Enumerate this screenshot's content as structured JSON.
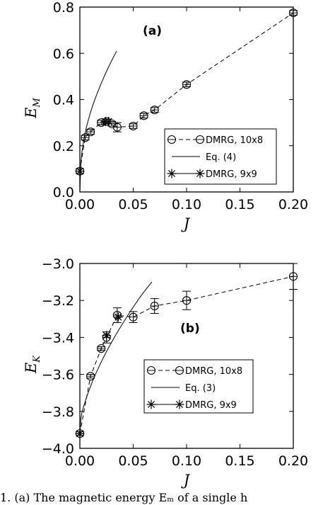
{
  "chart_data": [
    {
      "type": "scatter",
      "panel_label": "(a)",
      "xlabel": "J",
      "ylabel": "E_M",
      "xlim": [
        0.0,
        0.2
      ],
      "ylim": [
        0.0,
        0.8
      ],
      "xticks": [
        "0.00",
        "0.05",
        "0.10",
        "0.15",
        "0.20"
      ],
      "yticks": [
        "0.0",
        "0.2",
        "0.4",
        "0.6",
        "0.8"
      ],
      "legend_position": "lower-right",
      "series": [
        {
          "name": "DMRG, 10x8",
          "style": "open-circle-dashed",
          "x": [
            0.0,
            0.005,
            0.01,
            0.02,
            0.025,
            0.03,
            0.035,
            0.05,
            0.06,
            0.07,
            0.1,
            0.2
          ],
          "y": [
            0.09,
            0.235,
            0.26,
            0.3,
            0.305,
            0.295,
            0.28,
            0.285,
            0.33,
            0.355,
            0.465,
            0.775
          ],
          "err": [
            0.01,
            0.01,
            0.01,
            0.01,
            0.01,
            0.01,
            0.02,
            0.01,
            0.01,
            0.01,
            0.01,
            0.01
          ]
        },
        {
          "name": "Eq. (4)",
          "style": "solid-line",
          "x": [
            0.0,
            0.001,
            0.002,
            0.004,
            0.006,
            0.008,
            0.01,
            0.012,
            0.014,
            0.016,
            0.018,
            0.02,
            0.022,
            0.024,
            0.026,
            0.028,
            0.03,
            0.032,
            0.0345
          ],
          "y": [
            0.0,
            0.129,
            0.175,
            0.234,
            0.278,
            0.313,
            0.345,
            0.373,
            0.399,
            0.424,
            0.447,
            0.47,
            0.491,
            0.512,
            0.532,
            0.551,
            0.57,
            0.588,
            0.61
          ]
        },
        {
          "name": "DMRG, 9x9",
          "style": "star-solid",
          "x": [
            0.0,
            0.024,
            0.027
          ],
          "y": [
            0.09,
            0.305,
            0.305
          ]
        }
      ]
    },
    {
      "type": "scatter",
      "panel_label": "(b)",
      "xlabel": "J",
      "ylabel": "E_K",
      "xlim": [
        0.0,
        0.2
      ],
      "ylim": [
        -4.0,
        -3.0
      ],
      "xticks": [
        "0.00",
        "0.05",
        "0.10",
        "0.15",
        "0.20"
      ],
      "yticks": [
        "−4.0",
        "−3.8",
        "−3.6",
        "−3.4",
        "−3.2",
        "−3.0"
      ],
      "legend_position": "lower-left",
      "series": [
        {
          "name": "DMRG, 10x8",
          "style": "open-circle-dashed",
          "x": [
            0.0,
            0.01,
            0.02,
            0.025,
            0.035,
            0.05,
            0.07,
            0.1,
            0.2
          ],
          "y": [
            -3.92,
            -3.61,
            -3.46,
            -3.4,
            -3.28,
            -3.29,
            -3.23,
            -3.2,
            -3.07
          ],
          "err": [
            0.01,
            0.01,
            0.01,
            0.03,
            0.04,
            0.03,
            0.04,
            0.05,
            0.07
          ]
        },
        {
          "name": "Eq. (3)",
          "style": "solid-line",
          "x": [
            0.0,
            0.001,
            0.002,
            0.004,
            0.006,
            0.008,
            0.01,
            0.012,
            0.014,
            0.016,
            0.018,
            0.02,
            0.024,
            0.028,
            0.032,
            0.036,
            0.04,
            0.045,
            0.05,
            0.055,
            0.06,
            0.0675
          ],
          "y": [
            -3.92,
            -3.84,
            -3.806,
            -3.766,
            -3.728,
            -3.695,
            -3.665,
            -3.636,
            -3.608,
            -3.582,
            -3.557,
            -3.533,
            -3.487,
            -3.444,
            -3.403,
            -3.363,
            -3.326,
            -3.28,
            -3.236,
            -3.194,
            -3.154,
            -3.1
          ]
        },
        {
          "name": "DMRG, 9x9",
          "style": "star-solid",
          "x": [
            0.0,
            0.025,
            0.036
          ],
          "y": [
            -3.92,
            -3.39,
            -3.29
          ]
        }
      ]
    }
  ],
  "caption_fragment": "1.  (a) The magnetic energy Eₘ of a single h"
}
